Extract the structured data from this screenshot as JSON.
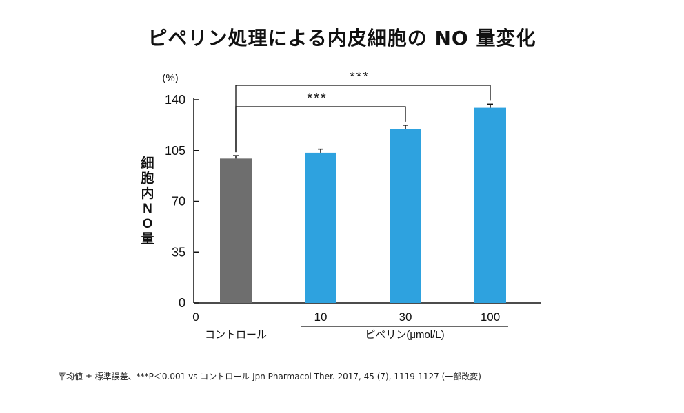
{
  "chart_data": {
    "type": "bar",
    "title": "ピペリン処理による内皮細胞の NO 量変化",
    "ylabel": "細胞内NO量",
    "yunit": "(%)",
    "ylim": [
      0,
      140
    ],
    "yticks": [
      "0",
      "35",
      "70",
      "105",
      "140"
    ],
    "ytick_values": [
      0,
      35,
      70,
      105,
      140
    ],
    "categories": [
      "コントロール",
      "10",
      "30",
      "100"
    ],
    "values": [
      99.5,
      103.5,
      120,
      134.5
    ],
    "errors": [
      2,
      2.5,
      2.5,
      2.5
    ],
    "colors": [
      "#6e6e6e",
      "#2ea2df",
      "#2ea2df",
      "#2ea2df"
    ],
    "xaxis_zero_label": "0",
    "group_label": "ピペリン(μmol/L)",
    "significance": [
      {
        "from": "コントロール",
        "to": "30",
        "label": "***"
      },
      {
        "from": "コントロール",
        "to": "100",
        "label": "***"
      }
    ]
  },
  "footnote": "平均値 ± 標準誤差、***P＜0.001 vs コントロール Jpn Pharmacol Ther. 2017, 45 (7), 1119-1127 (一部改変)"
}
